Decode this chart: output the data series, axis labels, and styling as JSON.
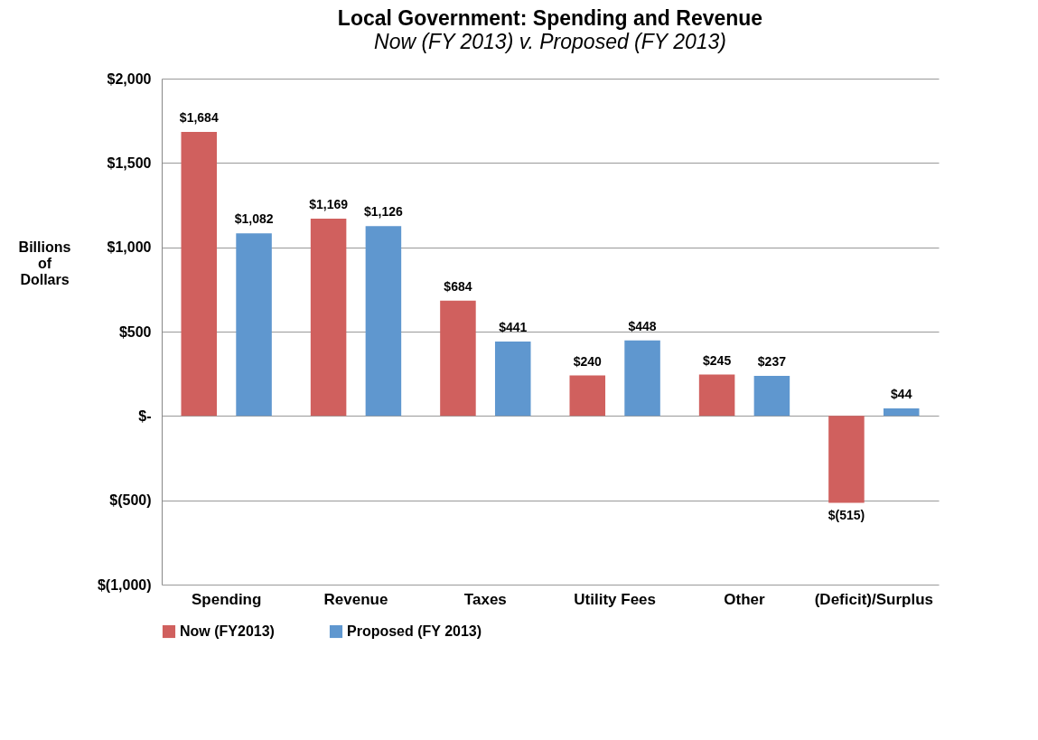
{
  "chart_data": {
    "type": "bar",
    "title": "Local Government: Spending and Revenue",
    "subtitle": "Now (FY 2013) v. Proposed (FY 2013)",
    "ylabel": "Billions of Dollars",
    "categories": [
      "Spending",
      "Revenue",
      "Taxes",
      "Utility Fees",
      "Other",
      "(Deficit)/Surplus"
    ],
    "series": [
      {
        "name": "Now (FY2013)",
        "color": "#d0605e",
        "values": [
          1684,
          1169,
          684,
          240,
          245,
          -515
        ],
        "value_labels": [
          "$1,684",
          "$1,169",
          "$684",
          "$240",
          "$245",
          "$(515)"
        ]
      },
      {
        "name": "Proposed (FY 2013)",
        "color": "#5f97cf",
        "values": [
          1082,
          1126,
          441,
          448,
          237,
          44
        ],
        "value_labels": [
          "$1,082",
          "$1,126",
          "$441",
          "$448",
          "$237",
          "$44"
        ]
      }
    ],
    "ylim": [
      -1000,
      2000
    ],
    "yticks": [
      {
        "value": -1000,
        "label": "$(1,000)"
      },
      {
        "value": -500,
        "label": "$(500)"
      },
      {
        "value": 0,
        "label": "$-"
      },
      {
        "value": 500,
        "label": "$500"
      },
      {
        "value": 1000,
        "label": "$1,000"
      },
      {
        "value": 1500,
        "label": "$1,500"
      },
      {
        "value": 2000,
        "label": "$2,000"
      }
    ],
    "grid": "y",
    "legend": "bottom"
  }
}
